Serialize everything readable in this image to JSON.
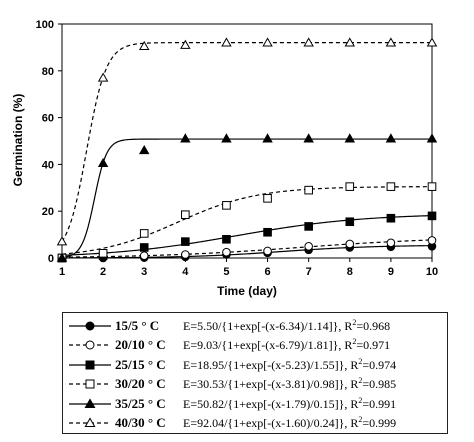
{
  "chart_data": {
    "type": "line",
    "xlabel": "Time (day)",
    "ylabel": "Germination (%)",
    "xlim": [
      1,
      10
    ],
    "ylim": [
      0,
      100
    ],
    "x_ticks": [
      "1",
      "2",
      "3",
      "4",
      "5",
      "6",
      "7",
      "8",
      "9",
      "10"
    ],
    "y_ticks": [
      "0",
      "20",
      "40",
      "60",
      "80",
      "100"
    ],
    "grid": false,
    "legend_position": "bottom",
    "series": [
      {
        "name": "15/5 ° C",
        "marker": "circle-filled",
        "line": "solid",
        "equation": "E=5.50/{1+exp[-(x-6.34)/1.14]}, ",
        "r2_label": "R",
        "r2_value": "=0.968",
        "fit": {
          "a": 5.5,
          "x0": 6.34,
          "b": 1.14
        },
        "x": [
          1,
          2,
          3,
          4,
          5,
          6,
          7,
          8,
          9,
          10
        ],
        "values": [
          0,
          0,
          0.2,
          0.5,
          1.5,
          2.2,
          3.5,
          4.5,
          4.8,
          5.0
        ]
      },
      {
        "name": "20/10 ° C",
        "marker": "circle-open",
        "line": "dashed",
        "equation": "E=9.03/{1+exp[-(x-6.79)/1.81]}, ",
        "r2_label": "R",
        "r2_value": "=0.971",
        "fit": {
          "a": 9.03,
          "x0": 6.79,
          "b": 1.81
        },
        "x": [
          1,
          2,
          3,
          4,
          5,
          6,
          7,
          8,
          9,
          10
        ],
        "values": [
          0,
          0.5,
          1,
          1.5,
          2.5,
          3,
          5,
          6,
          6.5,
          7.5
        ]
      },
      {
        "name": "25/15 ° C",
        "marker": "square-filled",
        "line": "solid",
        "equation": "E=18.95/{1+exp[-(x-5.23)/1.55]}, ",
        "r2_label": "R",
        "r2_value": "=0.974",
        "fit": {
          "a": 18.95,
          "x0": 5.23,
          "b": 1.55
        },
        "x": [
          1,
          2,
          3,
          4,
          5,
          6,
          7,
          8,
          9,
          10
        ],
        "values": [
          0,
          1,
          4.5,
          7,
          8,
          11,
          13.5,
          15.5,
          17,
          18
        ]
      },
      {
        "name": "30/20 ° C",
        "marker": "square-open",
        "line": "dashed",
        "equation": "E=30.53/{1+exp[-(x-3.81)/0.98]}, ",
        "r2_label": "R",
        "r2_value": "=0.985",
        "fit": {
          "a": 30.53,
          "x0": 3.81,
          "b": 0.98
        },
        "x": [
          1,
          2,
          3,
          4,
          5,
          6,
          7,
          8,
          9,
          10
        ],
        "values": [
          0,
          2,
          10.5,
          18.5,
          22.5,
          25.5,
          29,
          30.5,
          30.5,
          30.5
        ]
      },
      {
        "name": "35/25 ° C",
        "marker": "triangle-filled",
        "line": "solid",
        "equation": "E=50.82/{1+exp[-(x-1.79)/0.15]}, ",
        "r2_label": "R",
        "r2_value": "=0.991",
        "fit": {
          "a": 50.82,
          "x0": 1.79,
          "b": 0.15
        },
        "x": [
          1,
          2,
          3,
          4,
          5,
          6,
          7,
          8,
          9,
          10
        ],
        "values": [
          0,
          40.5,
          46,
          51,
          51,
          51,
          51,
          51,
          51,
          51
        ]
      },
      {
        "name": "40/30 ° C",
        "marker": "triangle-open",
        "line": "dashed",
        "equation": "E=92.04/{1+exp[-(x-1.60)/0.24]}, ",
        "r2_label": "R",
        "r2_value": "=0.999",
        "fit": {
          "a": 92.04,
          "x0": 1.6,
          "b": 0.24
        },
        "x": [
          1,
          2,
          3,
          4,
          5,
          6,
          7,
          8,
          9,
          10
        ],
        "values": [
          7,
          77,
          90.5,
          91,
          92,
          92,
          92,
          92,
          92,
          92
        ]
      }
    ]
  }
}
